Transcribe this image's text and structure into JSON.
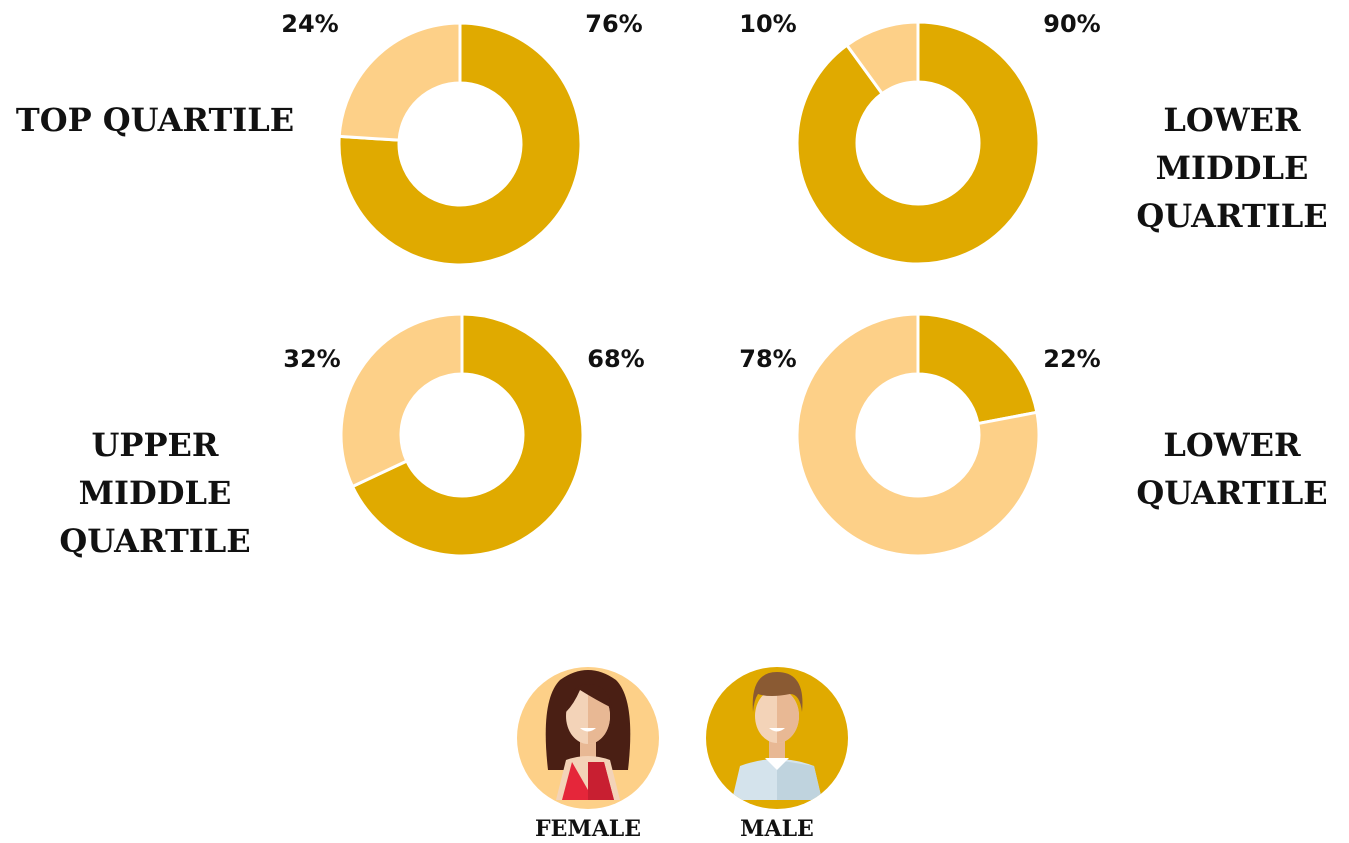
{
  "legend": {
    "items": [
      {
        "label": "FEMALE",
        "color": "#fdd088"
      },
      {
        "label": "MALE",
        "color": "#e0aa00"
      }
    ]
  },
  "chart_data": [
    {
      "type": "donut",
      "title": "TOP QUARTILE",
      "values": [
        24,
        76
      ],
      "value_labels": [
        "24%",
        "76%"
      ]
    },
    {
      "type": "donut",
      "title": "LOWER MIDDLE QUARTILE",
      "values": [
        10,
        90
      ],
      "value_labels": [
        "10%",
        "90%"
      ]
    },
    {
      "type": "donut",
      "title": "UPPER MIDDLE QUARTILE",
      "values": [
        32,
        68
      ],
      "value_labels": [
        "32%",
        "68%"
      ]
    },
    {
      "type": "donut",
      "title": "LOWER QUARTILE",
      "values": [
        78,
        22
      ],
      "value_labels": [
        "78%",
        "22%"
      ]
    }
  ]
}
